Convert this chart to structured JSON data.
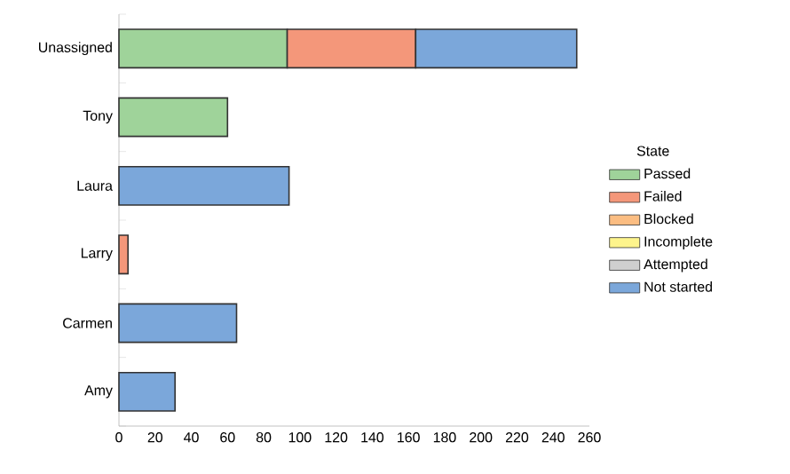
{
  "chart_data": {
    "type": "bar",
    "orientation": "horizontal",
    "stacked": true,
    "categories": [
      "Unassigned",
      "Tony",
      "Laura",
      "Larry",
      "Carmen",
      "Amy"
    ],
    "series": [
      {
        "name": "Passed",
        "color": "#9fd39a",
        "values": [
          93,
          60,
          0,
          0,
          0,
          0
        ]
      },
      {
        "name": "Failed",
        "color": "#f4977a",
        "values": [
          71,
          0,
          0,
          5,
          0,
          0
        ]
      },
      {
        "name": "Blocked",
        "color": "#fbbd82",
        "values": [
          0,
          0,
          0,
          0,
          0,
          0
        ]
      },
      {
        "name": "Incomplete",
        "color": "#fdf48c",
        "values": [
          0,
          0,
          0,
          0,
          0,
          0
        ]
      },
      {
        "name": "Attempted",
        "color": "#cfcfcf",
        "values": [
          0,
          0,
          0,
          0,
          0,
          0
        ]
      },
      {
        "name": "Not started",
        "color": "#7ba7da",
        "values": [
          89,
          0,
          94,
          0,
          65,
          31
        ]
      }
    ],
    "legend_title": "State",
    "legend": "right",
    "xlim": [
      0,
      260
    ],
    "xticks": [
      0,
      20,
      40,
      60,
      80,
      100,
      120,
      140,
      160,
      180,
      200,
      220,
      240,
      260
    ]
  }
}
